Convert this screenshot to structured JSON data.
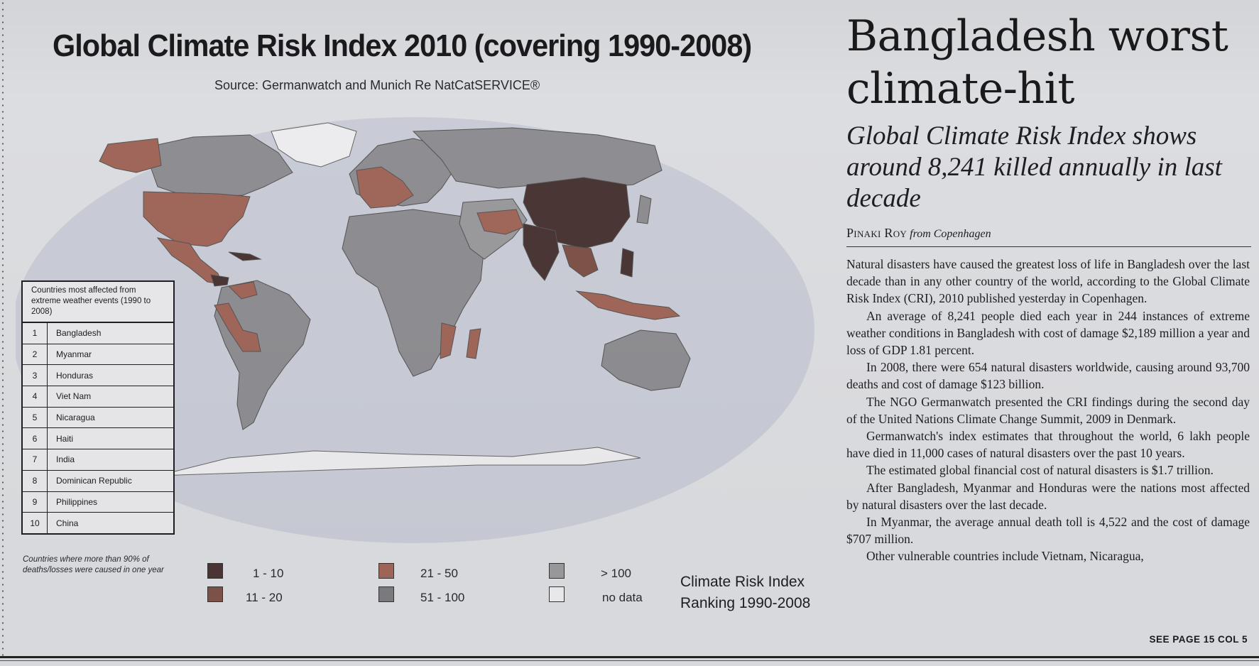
{
  "graphic": {
    "title": "Global Climate Risk Index 2010 (covering 1990-2008)",
    "source": "Source: Germanwatch and Munich Re NatCatSERVICE®",
    "ranking": {
      "header": "Countries most affected from extreme weather events (1990 to 2008)",
      "rows": [
        {
          "rank": "1",
          "country": "Bangladesh"
        },
        {
          "rank": "2",
          "country": "Myanmar"
        },
        {
          "rank": "3",
          "country": "Honduras"
        },
        {
          "rank": "4",
          "country": "Viet Nam"
        },
        {
          "rank": "5",
          "country": "Nicaragua"
        },
        {
          "rank": "6",
          "country": "Haiti"
        },
        {
          "rank": "7",
          "country": "India"
        },
        {
          "rank": "8",
          "country": "Dominican Republic"
        },
        {
          "rank": "9",
          "country": "Philippines"
        },
        {
          "rank": "10",
          "country": "China"
        }
      ]
    },
    "note": "Countries where more than 90% of deaths/losses were caused in one year",
    "legend": {
      "items": [
        {
          "label": "1 - 10",
          "color": "#4a3634"
        },
        {
          "label": "11 - 20",
          "color": "#7e5348"
        },
        {
          "label": "21 - 50",
          "color": "#a0665a"
        },
        {
          "label": "51 - 100",
          "color": "#7c7c80"
        },
        {
          "label": "> 100",
          "color": "#9a9a9d"
        },
        {
          "label": "no data",
          "color": "#ececee"
        }
      ],
      "title_line1": "Climate Risk Index",
      "title_line2": "Ranking 1990-2008"
    }
  },
  "article": {
    "headline_line1": "Bangladesh worst",
    "headline_line2": "climate-hit",
    "subhead": "Global Climate Risk Index shows around 8,241 killed annually in last decade",
    "byline_name": "Pinaki Roy",
    "byline_from": "from Copenhagen",
    "paragraphs": [
      "Natural disasters have caused the greatest loss of life in Bangladesh over the last decade than in any other country of the world, according to the Global Climate Risk Index (CRI), 2010 published yesterday in Copenhagen.",
      "An average of 8,241 people died each year in 244 instances of extreme weather conditions in Bangladesh with cost of damage $2,189 million a year and loss of GDP 1.81 percent.",
      "In 2008, there were 654 natural disasters worldwide, causing around 93,700 deaths and cost of damage $123 billion.",
      "The NGO Germanwatch presented the CRI findings during the second day of the United Nations Climate Change Summit, 2009 in Denmark.",
      "Germanwatch's index estimates that throughout the world, 6 lakh people have died in 11,000 cases of natural disasters over the past 10 years.",
      "The estimated global financial cost of natural disasters is $1.7 trillion.",
      "After Bangladesh, Myanmar and Honduras were the nations most affected by natural disasters over the last decade.",
      "In Myanmar, the average annual death toll is 4,522 and the cost of damage $707 million.",
      "Other vulnerable countries include Vietnam, Nicaragua,"
    ],
    "continued": "SEE PAGE 15 COL 5"
  }
}
